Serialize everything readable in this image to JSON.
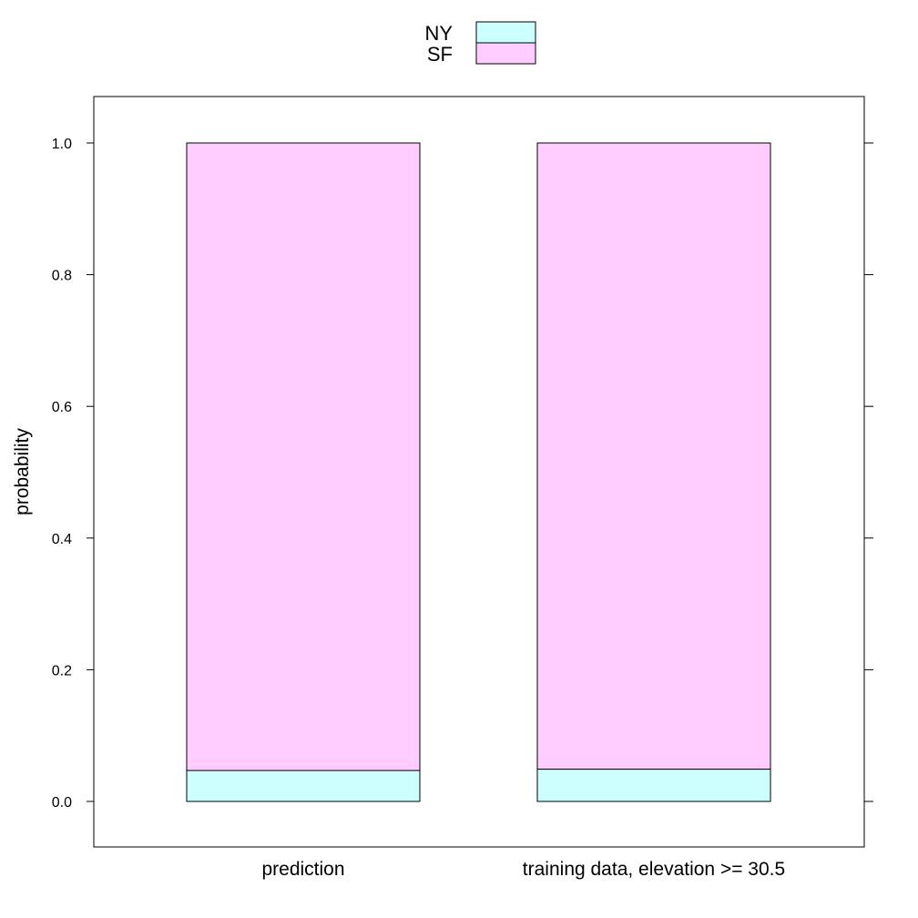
{
  "chart_data": {
    "type": "bar",
    "stacked": true,
    "title": "",
    "xlabel": "",
    "ylabel": "probability",
    "categories": [
      "prediction",
      "training data, elevation >= 30.5"
    ],
    "series": [
      {
        "name": "NY",
        "values": [
          0.047,
          0.049
        ],
        "color": "#ccffff"
      },
      {
        "name": "SF",
        "values": [
          0.953,
          0.951
        ],
        "color": "#ffccff"
      }
    ],
    "ylim": [
      -0.07,
      1.07
    ],
    "yticks": [
      0.0,
      0.2,
      0.4,
      0.6,
      0.8,
      1.0
    ],
    "ytick_labels": [
      "0.0",
      "0.2",
      "0.4",
      "0.6",
      "0.8",
      "1.0"
    ],
    "grid": false,
    "legend": {
      "placement": "top-center",
      "entries": [
        "NY",
        "SF"
      ]
    }
  }
}
